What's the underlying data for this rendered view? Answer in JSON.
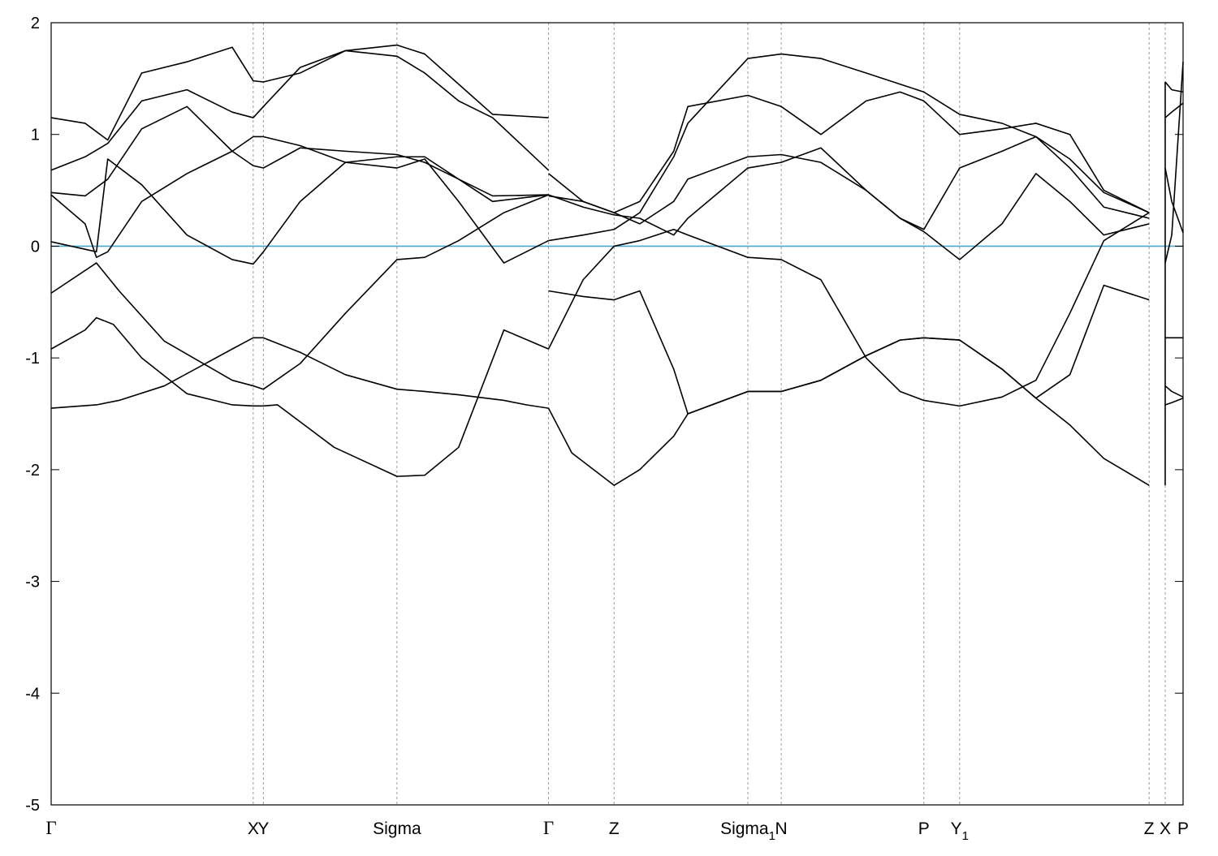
{
  "chart_data": {
    "type": "line",
    "title": "",
    "xlabel": "",
    "ylabel": "",
    "ylim": [
      -5,
      2
    ],
    "yticks": [
      -5,
      -4,
      -3,
      -2,
      -1,
      0,
      1,
      2
    ],
    "xlim": [
      0,
      1
    ],
    "grid": "dashed vertical lines at high-symmetry points",
    "legend": "none",
    "colors": {
      "bands": "#000000",
      "fermi_level": "#4aa8c8",
      "grid": "#9a9a9a"
    },
    "kpoints": [
      {
        "label": "Γ",
        "x": 0.0
      },
      {
        "label": "X",
        "x": 0.1785
      },
      {
        "label": "Y",
        "x": 0.1875
      },
      {
        "label": "Sigma",
        "x": 0.3055
      },
      {
        "label": "Γ",
        "x": 0.4394
      },
      {
        "label": "Z",
        "x": 0.4973
      },
      {
        "label": "Sigma",
        "sub": "1",
        "x": 0.6155
      },
      {
        "label": "N",
        "x": 0.645
      },
      {
        "label": "P",
        "x": 0.771
      },
      {
        "label": "Y",
        "sub": "1",
        "x": 0.8026
      },
      {
        "label": "Z",
        "x": 0.97
      },
      {
        "label": "X",
        "x": 0.9842
      },
      {
        "label": "P",
        "x": 1.0
      }
    ],
    "fermi_level": 0,
    "series": [
      {
        "x": [
          0,
          0.04,
          0.06,
          0.1,
          0.16,
          0.1785,
          0.1875,
          0.22,
          0.26,
          0.3055,
          0.33,
          0.36,
          0.4,
          0.42,
          0.4394
        ],
        "y": [
          -1.45,
          -1.42,
          -1.38,
          -1.25,
          -0.92,
          -0.82,
          -0.82,
          -0.95,
          -1.15,
          -1.28,
          -1.3,
          -1.33,
          -1.38,
          -1.42,
          -1.45
        ]
      },
      {
        "x": [
          0.4394,
          0.46,
          0.4973,
          0.52,
          0.55,
          0.5625,
          0.6155,
          0.645,
          0.68,
          0.72,
          0.75,
          0.771,
          0.8026,
          0.84,
          0.87,
          0.9,
          0.93,
          0.97
        ],
        "y": [
          -1.45,
          -1.85,
          -2.14,
          -2.0,
          -1.7,
          -1.5,
          -1.3,
          -1.3,
          -1.2,
          -0.98,
          -0.84,
          -0.82,
          -0.84,
          -1.1,
          -1.36,
          -1.6,
          -1.9,
          -2.14
        ]
      },
      {
        "x": [
          0,
          0.03,
          0.04,
          0.055,
          0.08,
          0.12,
          0.16,
          0.1785,
          0.1875,
          0.2,
          0.25,
          0.3055,
          0.33,
          0.36,
          0.4,
          0.4394
        ],
        "y": [
          -0.92,
          -0.75,
          -0.64,
          -0.7,
          -1.0,
          -1.32,
          -1.42,
          -1.43,
          -1.43,
          -1.42,
          -1.8,
          -2.06,
          -2.05,
          -1.8,
          -0.75,
          -0.92
        ]
      },
      {
        "x": [
          0.4394,
          0.47,
          0.4973,
          0.52,
          0.55,
          0.5625,
          0.6155,
          0.645,
          0.68,
          0.72,
          0.75,
          0.771,
          0.8026,
          0.84,
          0.87,
          0.9,
          0.93,
          0.97
        ],
        "y": [
          0.05,
          0.1,
          0.15,
          0.3,
          0.8,
          1.1,
          1.68,
          1.72,
          1.68,
          1.55,
          1.45,
          1.38,
          1.18,
          1.1,
          0.98,
          0.78,
          0.48,
          0.3
        ]
      },
      {
        "x": [
          0.4394,
          0.47,
          0.4973,
          0.52,
          0.55,
          0.5625,
          0.6155,
          0.645,
          0.68,
          0.72,
          0.75,
          0.771,
          0.8026,
          0.84,
          0.87,
          0.9,
          0.93,
          0.97
        ],
        "y": [
          0.45,
          0.4,
          0.3,
          0.4,
          0.85,
          1.25,
          1.35,
          1.25,
          1.0,
          1.3,
          1.38,
          1.3,
          1.0,
          1.05,
          1.1,
          1.0,
          0.5,
          0.3
        ]
      },
      {
        "x": [
          0.4394,
          0.47,
          0.4973,
          0.52,
          0.55,
          0.5625,
          0.6155,
          0.645,
          0.68,
          0.72,
          0.75,
          0.771,
          0.8026,
          0.84,
          0.87,
          0.9,
          0.93,
          0.97
        ],
        "y": [
          0.65,
          0.4,
          0.3,
          0.2,
          0.4,
          0.6,
          0.8,
          0.82,
          0.75,
          0.5,
          0.25,
          0.15,
          0.7,
          0.85,
          0.98,
          0.7,
          0.35,
          0.25
        ]
      },
      {
        "x": [
          0.4394,
          0.47,
          0.4973,
          0.52,
          0.55,
          0.5625,
          0.6155,
          0.645,
          0.68,
          0.72,
          0.75,
          0.771,
          0.8026,
          0.84,
          0.87,
          0.9,
          0.93,
          0.97
        ],
        "y": [
          0.46,
          0.35,
          0.28,
          0.25,
          0.1,
          0.25,
          0.7,
          0.75,
          0.88,
          0.5,
          0.25,
          0.13,
          -0.12,
          0.2,
          0.65,
          0.4,
          0.1,
          0.2
        ]
      },
      {
        "x": [
          0.4394,
          0.47,
          0.4973,
          0.52,
          0.55,
          0.5625,
          0.6155,
          0.645,
          0.68,
          0.72,
          0.75,
          0.771,
          0.8026,
          0.84,
          0.87,
          0.9,
          0.93,
          0.97
        ],
        "y": [
          -0.4,
          -0.45,
          -0.48,
          -0.4,
          -1.1,
          -1.5,
          -1.3,
          -1.3,
          -1.2,
          -0.98,
          -0.84,
          -0.82,
          -0.84,
          -1.1,
          -1.36,
          -1.15,
          -0.35,
          -0.48
        ]
      },
      {
        "x": [
          0.4394,
          0.47,
          0.4973,
          0.52,
          0.55,
          0.5625,
          0.6155,
          0.645,
          0.68,
          0.72,
          0.75,
          0.771,
          0.8026,
          0.84,
          0.87,
          0.9,
          0.93,
          0.97
        ],
        "y": [
          -0.92,
          -0.3,
          0.0,
          0.05,
          0.15,
          0.1,
          -0.1,
          -0.12,
          -0.3,
          -1.0,
          -1.3,
          -1.38,
          -1.43,
          -1.35,
          -1.2,
          -0.6,
          0.05,
          0.3
        ]
      },
      {
        "x": [
          0,
          0.03,
          0.05,
          0.08,
          0.12,
          0.16,
          0.1785,
          0.1875,
          0.22,
          0.26,
          0.3055,
          0.33,
          0.36,
          0.39,
          0.4394
        ],
        "y": [
          1.15,
          1.1,
          0.95,
          1.55,
          1.65,
          1.78,
          1.48,
          1.47,
          1.55,
          1.75,
          1.8,
          1.72,
          1.45,
          1.18,
          1.15
        ]
      },
      {
        "x": [
          0,
          0.03,
          0.05,
          0.08,
          0.12,
          0.16,
          0.1785,
          0.1875,
          0.22,
          0.26,
          0.3055,
          0.33,
          0.36,
          0.39,
          0.4394
        ],
        "y": [
          0.68,
          0.8,
          0.92,
          1.3,
          1.4,
          1.2,
          1.15,
          1.25,
          1.6,
          1.75,
          1.7,
          1.55,
          1.3,
          1.15,
          0.68
        ]
      },
      {
        "x": [
          0,
          0.03,
          0.05,
          0.08,
          0.12,
          0.16,
          0.1785,
          0.1875,
          0.22,
          0.26,
          0.3055,
          0.33,
          0.36,
          0.39,
          0.4394
        ],
        "y": [
          0.48,
          0.45,
          0.6,
          1.05,
          1.25,
          0.85,
          0.72,
          0.7,
          0.88,
          0.85,
          0.82,
          0.75,
          0.6,
          0.4,
          0.46
        ]
      },
      {
        "x": [
          0,
          0.03,
          0.04,
          0.05,
          0.08,
          0.12,
          0.16,
          0.1785,
          0.1875,
          0.22,
          0.26,
          0.3055,
          0.33,
          0.36,
          0.4,
          0.4394
        ],
        "y": [
          0.46,
          0.2,
          -0.1,
          -0.05,
          0.4,
          0.65,
          0.85,
          0.98,
          0.98,
          0.9,
          0.75,
          0.7,
          0.78,
          0.4,
          -0.15,
          0.05
        ]
      },
      {
        "x": [
          0,
          0.04,
          0.05,
          0.08,
          0.12,
          0.16,
          0.1785,
          0.1875,
          0.22,
          0.26,
          0.3055,
          0.33,
          0.36,
          0.39,
          0.4394
        ],
        "y": [
          0.04,
          -0.05,
          0.78,
          0.55,
          0.1,
          -0.12,
          -0.16,
          -0.05,
          0.4,
          0.75,
          0.8,
          0.8,
          0.6,
          0.45,
          0.46
        ]
      },
      {
        "x": [
          0,
          0.04,
          0.06,
          0.1,
          0.16,
          0.1785,
          0.1875,
          0.22,
          0.26,
          0.3055,
          0.33,
          0.36,
          0.4,
          0.4394
        ],
        "y": [
          -0.42,
          -0.15,
          -0.4,
          -0.85,
          -1.2,
          -1.25,
          -1.28,
          -1.05,
          -0.6,
          -0.12,
          -0.1,
          0.05,
          0.3,
          0.46
        ]
      },
      {
        "x": [
          0.9842,
          0.99,
          1.0
        ],
        "y": [
          1.47,
          1.4,
          1.38
        ]
      },
      {
        "x": [
          0.9842,
          0.99,
          1.0
        ],
        "y": [
          1.15,
          1.2,
          1.28
        ]
      },
      {
        "x": [
          0.9842,
          0.99,
          1.0
        ],
        "y": [
          0.7,
          0.4,
          0.12
        ]
      },
      {
        "x": [
          0.9842,
          0.99,
          1.0
        ],
        "y": [
          -0.15,
          0.1,
          1.65
        ]
      },
      {
        "x": [
          0.9842,
          0.99,
          1.0
        ],
        "y": [
          -0.82,
          -0.82,
          -0.82
        ]
      },
      {
        "x": [
          0.9842,
          0.99,
          1.0
        ],
        "y": [
          -1.25,
          -1.3,
          -1.35
        ]
      },
      {
        "x": [
          0.9842,
          0.99,
          1.0
        ],
        "y": [
          -1.42,
          -1.4,
          -1.36
        ]
      },
      {
        "x": [
          0.9842,
          0.9842
        ],
        "y": [
          -2.14,
          1.47
        ]
      }
    ]
  }
}
